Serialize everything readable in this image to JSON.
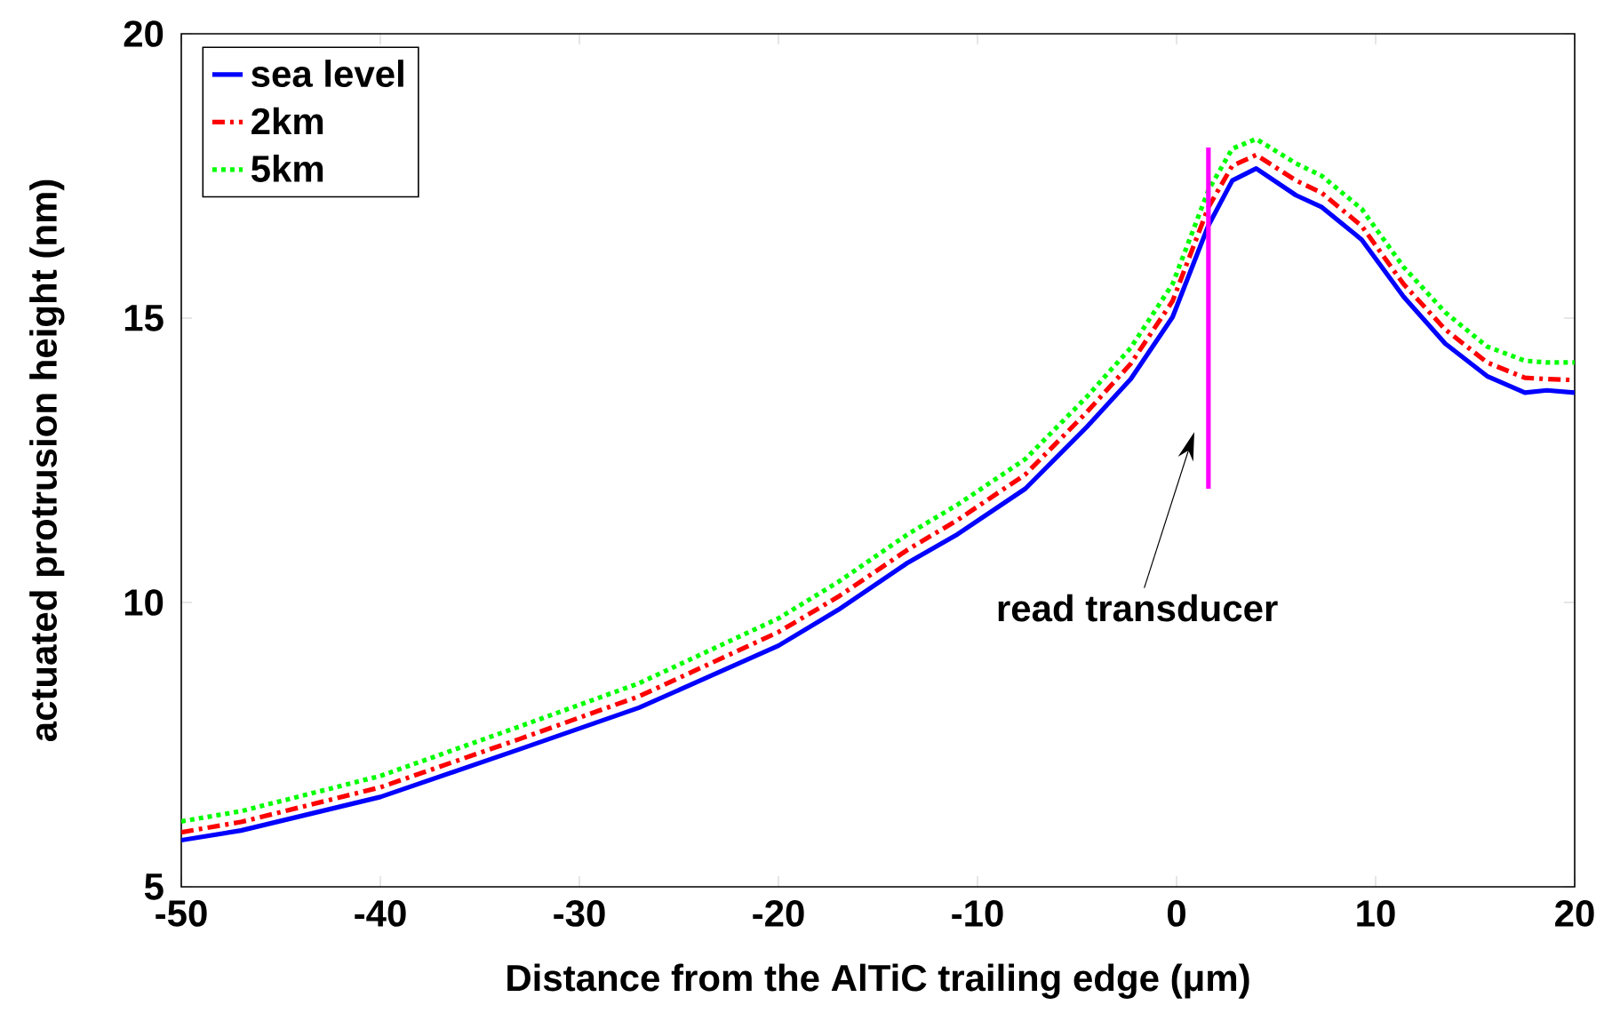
{
  "chart_data": {
    "type": "line",
    "xlabel": "Distance from the AlTiC trailing edge (μm)",
    "ylabel": "actuated protrusion height (nm)",
    "xlim": [
      -50,
      20
    ],
    "ylim": [
      5,
      20
    ],
    "xticks": [
      -50,
      -40,
      -30,
      -20,
      -10,
      0,
      10,
      20
    ],
    "yticks": [
      5,
      10,
      15,
      20
    ],
    "legend": "top left",
    "series": [
      {
        "name": "sea level",
        "color": "#0000ff",
        "line_style": "solid",
        "x": [
          -50,
          -47,
          -40,
          -33,
          -27,
          -20,
          -17,
          -13.5,
          -11,
          -7.6,
          -4.5,
          -2.3,
          -0.2,
          1.6,
          2.8,
          4,
          6,
          7.3,
          9.3,
          11.4,
          13.5,
          15.6,
          17.5,
          18.6,
          20
        ],
        "values": [
          5.82,
          5.99,
          6.58,
          7.42,
          8.15,
          9.24,
          9.87,
          10.7,
          11.2,
          12.0,
          13.09,
          13.93,
          15.02,
          16.63,
          17.42,
          17.63,
          17.16,
          16.95,
          16.38,
          15.38,
          14.55,
          13.98,
          13.69,
          13.73,
          13.69
        ]
      },
      {
        "name": "2km",
        "color": "#ff0000",
        "line_style": "dashdot",
        "x": [
          -50,
          -47,
          -40,
          -33,
          -27,
          -20,
          -17,
          -13.5,
          -11,
          -7.6,
          -4.5,
          -2.3,
          -0.2,
          1.6,
          2.8,
          4,
          6,
          7.3,
          9.3,
          11.4,
          13.5,
          15.6,
          17.5,
          18.6,
          20
        ],
        "values": [
          5.96,
          6.14,
          6.75,
          7.6,
          8.35,
          9.48,
          10.1,
          10.93,
          11.45,
          12.25,
          13.35,
          14.2,
          15.3,
          16.95,
          17.68,
          17.87,
          17.42,
          17.2,
          16.62,
          15.6,
          14.8,
          14.22,
          13.95,
          13.93,
          13.91
        ]
      },
      {
        "name": "5km",
        "color": "#00ff00",
        "line_style": "dotted",
        "x": [
          -50,
          -47,
          -40,
          -33,
          -27,
          -20,
          -17,
          -13.5,
          -11,
          -7.6,
          -4.5,
          -2.3,
          -0.2,
          1.6,
          2.8,
          4,
          6,
          7.3,
          9.3,
          11.4,
          13.5,
          15.6,
          17.5,
          18.6,
          20
        ],
        "values": [
          6.15,
          6.33,
          6.95,
          7.82,
          8.58,
          9.72,
          10.36,
          11.2,
          11.72,
          12.52,
          13.62,
          14.48,
          15.6,
          17.25,
          17.98,
          18.15,
          17.72,
          17.5,
          16.92,
          15.9,
          15.1,
          14.5,
          14.25,
          14.22,
          14.22
        ]
      },
      {
        "color": "#ff00ff",
        "line_style": "solid",
        "x": [
          1.6,
          1.6
        ],
        "values": [
          12,
          18
        ]
      }
    ],
    "annotations": [
      "read transducer"
    ]
  }
}
